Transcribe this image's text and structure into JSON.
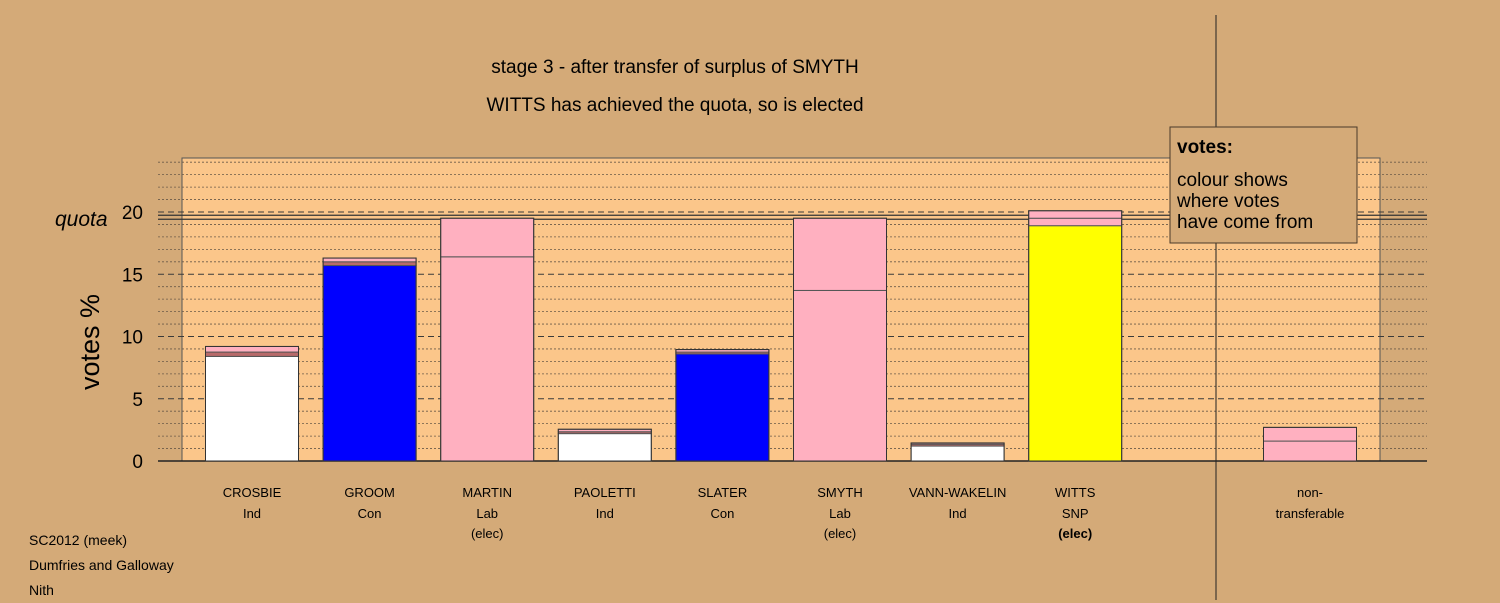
{
  "chart_data": {
    "type": "bar",
    "title": "stage 3 - after transfer of surplus of SMYTH",
    "subtitle": "WITTS has achieved the quota, so is elected",
    "ylabel": "votes %",
    "quota_label": "quota",
    "quota_value": 19.5,
    "ylim": [
      0,
      24.5
    ],
    "yticks": [
      "0",
      "5",
      "10",
      "15",
      "20"
    ],
    "grid": true,
    "stacked": true,
    "legend": {
      "title": "votes:",
      "lines": [
        "colour shows",
        "where votes",
        "have come from"
      ],
      "position": "top-right"
    },
    "candidates": [
      {
        "name": "CROSBIE",
        "party": "Ind",
        "status": "",
        "segments": [
          {
            "value": 8.4,
            "color": "#ffffff"
          },
          {
            "value": 0.35,
            "color": "#b86a6a"
          },
          {
            "value": 0.45,
            "color": "#ffb0c0"
          }
        ]
      },
      {
        "name": "GROOM",
        "party": "Con",
        "status": "",
        "segments": [
          {
            "value": 15.7,
            "color": "#0000ff"
          },
          {
            "value": 0.3,
            "color": "#b86a6a"
          },
          {
            "value": 0.3,
            "color": "#ffb0c0"
          }
        ]
      },
      {
        "name": "MARTIN",
        "party": "Lab",
        "status": "(elec)",
        "segments": [
          {
            "value": 16.4,
            "color": "#ffb0c0"
          },
          {
            "value": 3.1,
            "color": "#ffb0c0"
          }
        ]
      },
      {
        "name": "PAOLETTI",
        "party": "Ind",
        "status": "",
        "segments": [
          {
            "value": 2.2,
            "color": "#ffffff"
          },
          {
            "value": 0.15,
            "color": "#b86a6a"
          },
          {
            "value": 0.2,
            "color": "#ffb0c0"
          }
        ]
      },
      {
        "name": "SLATER",
        "party": "Con",
        "status": "",
        "segments": [
          {
            "value": 8.6,
            "color": "#0000ff"
          },
          {
            "value": 0.15,
            "color": "#b86a6a"
          },
          {
            "value": 0.2,
            "color": "#ffb0c0"
          }
        ]
      },
      {
        "name": "SMYTH",
        "party": "Lab",
        "status": "(elec)",
        "segments": [
          {
            "value": 13.7,
            "color": "#ffb0c0"
          },
          {
            "value": 5.8,
            "color": "#ffb0c0"
          }
        ]
      },
      {
        "name": "VANN-WAKELIN",
        "party": "Ind",
        "status": "",
        "segments": [
          {
            "value": 1.2,
            "color": "#ffffff"
          },
          {
            "value": 0.15,
            "color": "#b86a6a"
          },
          {
            "value": 0.1,
            "color": "#ffb0c0"
          }
        ]
      },
      {
        "name": "WITTS",
        "party": "SNP",
        "status": "(elec)",
        "segments": [
          {
            "value": 18.9,
            "color": "#ffff00"
          },
          {
            "value": 0.6,
            "color": "#ffb0c0"
          },
          {
            "value": 0.6,
            "color": "#ffb0c0"
          }
        ]
      }
    ],
    "nontransferable": {
      "line1": "non-",
      "line2": "transferable",
      "segments": [
        {
          "value": 1.6,
          "color": "#ffb0c0"
        },
        {
          "value": 1.1,
          "color": "#ffb0c0"
        }
      ]
    }
  },
  "footer": {
    "election": "SC2012 (meek)",
    "council": "Dumfries and Galloway",
    "ward": "Nith"
  }
}
